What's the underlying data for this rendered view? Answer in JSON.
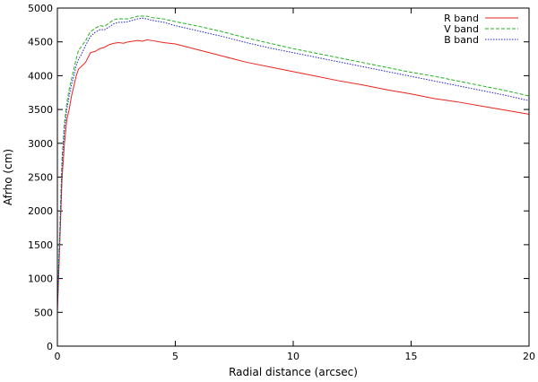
{
  "chart_data": {
    "type": "line",
    "title": "",
    "xlabel": "Radial distance (arcsec)",
    "ylabel": "Afrho (cm)",
    "xlim": [
      0,
      20
    ],
    "ylim": [
      0,
      5000
    ],
    "xticks": [
      0,
      5,
      10,
      15,
      20
    ],
    "yticks": [
      0,
      500,
      1000,
      1500,
      2000,
      2500,
      3000,
      3500,
      4000,
      4500,
      5000
    ],
    "grid": false,
    "legend": "top-right",
    "series": [
      {
        "name": "R band",
        "color": "#e8251f",
        "style": "solid",
        "x": [
          0.0,
          0.1,
          0.2,
          0.3,
          0.4,
          0.5,
          0.6,
          0.7,
          0.8,
          0.9,
          1.0,
          1.2,
          1.4,
          1.6,
          1.8,
          2.0,
          2.2,
          2.4,
          2.6,
          2.8,
          3.0,
          3.2,
          3.4,
          3.6,
          3.8,
          4.0,
          4.5,
          5.0,
          6.0,
          7.0,
          8.0,
          9.0,
          10.0,
          11.0,
          12.0,
          13.0,
          14.0,
          15.0,
          16.0,
          17.0,
          18.0,
          19.0,
          20.0
        ],
        "y": [
          500,
          1500,
          2500,
          3000,
          3350,
          3500,
          3700,
          3850,
          4000,
          4100,
          4130,
          4200,
          4340,
          4360,
          4400,
          4420,
          4460,
          4480,
          4490,
          4480,
          4500,
          4510,
          4520,
          4510,
          4530,
          4520,
          4490,
          4470,
          4380,
          4290,
          4200,
          4130,
          4060,
          3990,
          3920,
          3860,
          3790,
          3730,
          3660,
          3610,
          3550,
          3490,
          3430
        ]
      },
      {
        "name": "V band",
        "color": "#21b121",
        "style": "dashed",
        "x": [
          0.0,
          0.1,
          0.2,
          0.3,
          0.4,
          0.5,
          0.6,
          0.7,
          0.8,
          0.9,
          1.0,
          1.2,
          1.4,
          1.6,
          1.8,
          2.0,
          2.2,
          2.4,
          2.6,
          2.8,
          3.0,
          3.2,
          3.4,
          3.6,
          3.8,
          4.0,
          4.5,
          5.0,
          6.0,
          7.0,
          8.0,
          9.0,
          10.0,
          11.0,
          12.0,
          13.0,
          14.0,
          15.0,
          16.0,
          17.0,
          18.0,
          19.0,
          20.0
        ],
        "y": [
          600,
          1700,
          2800,
          3300,
          3600,
          3800,
          3950,
          4100,
          4250,
          4380,
          4420,
          4520,
          4650,
          4700,
          4740,
          4730,
          4780,
          4830,
          4840,
          4840,
          4840,
          4860,
          4880,
          4880,
          4880,
          4860,
          4840,
          4800,
          4730,
          4650,
          4560,
          4480,
          4400,
          4330,
          4260,
          4190,
          4120,
          4050,
          3990,
          3920,
          3850,
          3780,
          3700
        ]
      },
      {
        "name": "B band",
        "color": "#2020c8",
        "style": "dotted",
        "x": [
          0.0,
          0.1,
          0.2,
          0.3,
          0.4,
          0.5,
          0.6,
          0.7,
          0.8,
          0.9,
          1.0,
          1.2,
          1.4,
          1.6,
          1.8,
          2.0,
          2.2,
          2.4,
          2.6,
          2.8,
          3.0,
          3.2,
          3.4,
          3.6,
          3.8,
          4.0,
          4.5,
          5.0,
          6.0,
          7.0,
          8.0,
          9.0,
          10.0,
          11.0,
          12.0,
          13.0,
          14.0,
          15.0,
          16.0,
          17.0,
          18.0,
          19.0,
          20.0
        ],
        "y": [
          550,
          1600,
          2700,
          3200,
          3500,
          3700,
          3870,
          4000,
          4150,
          4250,
          4300,
          4450,
          4580,
          4640,
          4680,
          4680,
          4720,
          4770,
          4790,
          4790,
          4800,
          4820,
          4840,
          4850,
          4840,
          4820,
          4790,
          4740,
          4660,
          4580,
          4490,
          4410,
          4340,
          4270,
          4200,
          4130,
          4060,
          3990,
          3920,
          3850,
          3780,
          3710,
          3630
        ]
      }
    ]
  }
}
